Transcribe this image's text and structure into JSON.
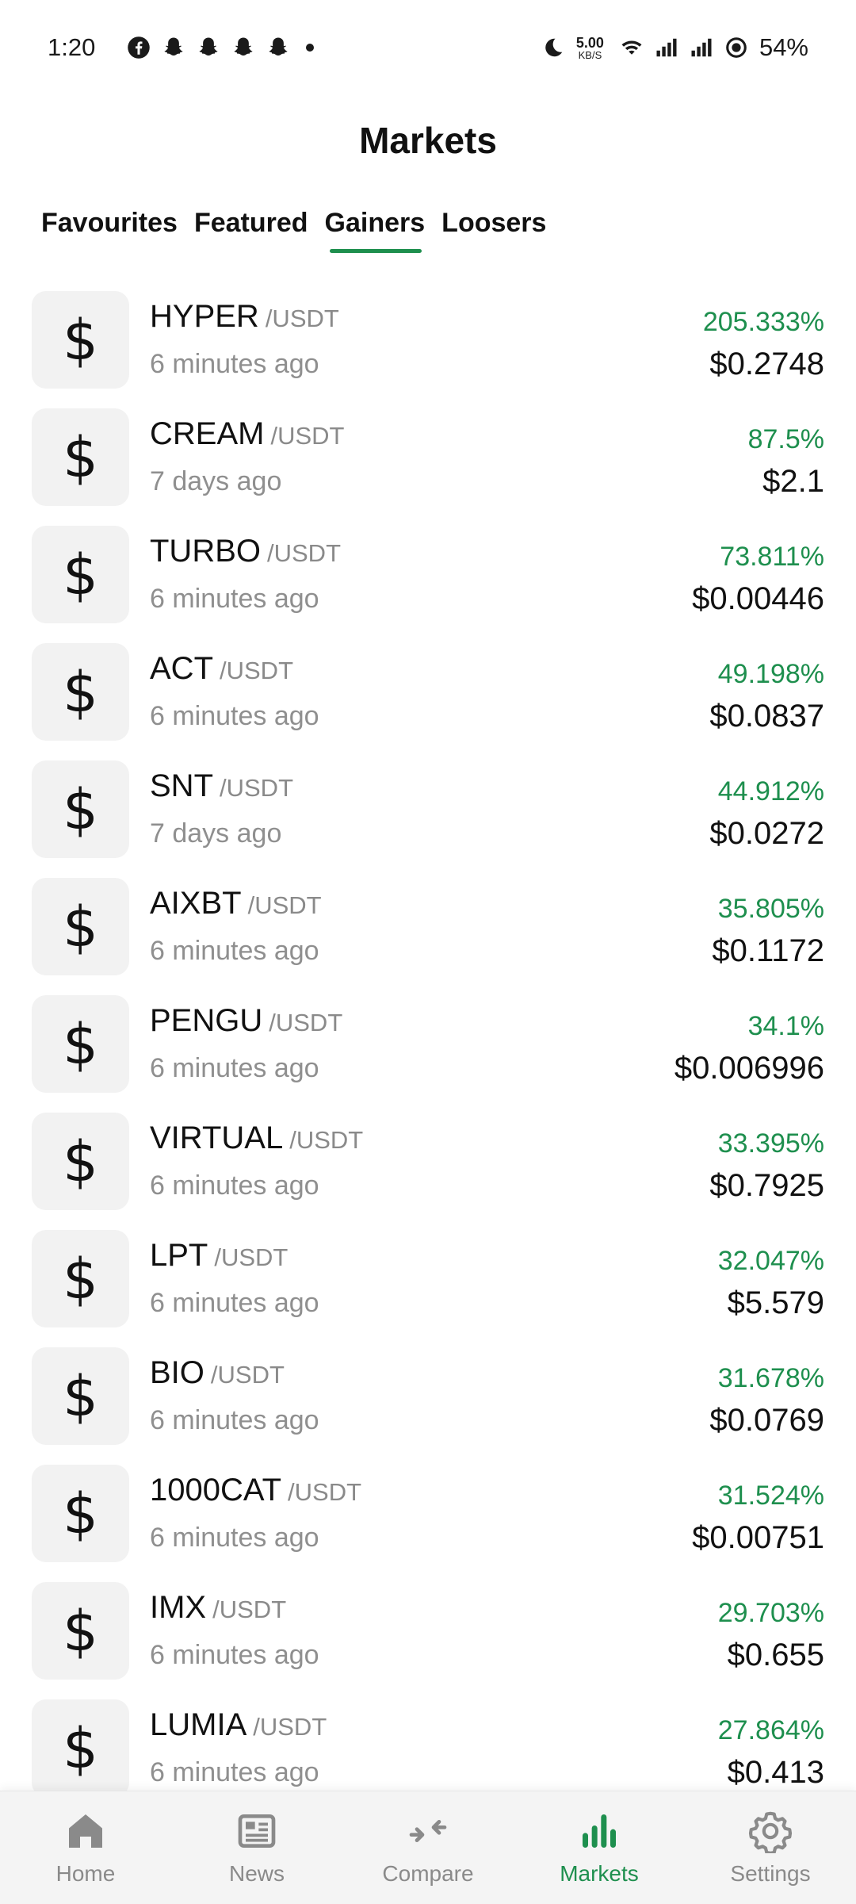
{
  "status_bar": {
    "time": "1:20",
    "net_speed_value": "5.00",
    "net_speed_unit": "KB/S",
    "battery": "54%"
  },
  "header": {
    "title": "Markets"
  },
  "tabs": [
    {
      "label": "Favourites"
    },
    {
      "label": "Featured"
    },
    {
      "label": "Gainers"
    },
    {
      "label": "Loosers"
    }
  ],
  "active_tab": "Gainers",
  "accent_color": "#1e8f4e",
  "coin_icon_glyph": "$",
  "coins": [
    {
      "symbol": "HYPER",
      "pair": "/USDT",
      "updated": "6 minutes ago",
      "change": "205.333%",
      "price": "$0.2748"
    },
    {
      "symbol": "CREAM",
      "pair": "/USDT",
      "updated": "7 days ago",
      "change": "87.5%",
      "price": "$2.1"
    },
    {
      "symbol": "TURBO",
      "pair": "/USDT",
      "updated": "6 minutes ago",
      "change": "73.811%",
      "price": "$0.00446"
    },
    {
      "symbol": "ACT",
      "pair": "/USDT",
      "updated": "6 minutes ago",
      "change": "49.198%",
      "price": "$0.0837"
    },
    {
      "symbol": "SNT",
      "pair": "/USDT",
      "updated": "7 days ago",
      "change": "44.912%",
      "price": "$0.0272"
    },
    {
      "symbol": "AIXBT",
      "pair": "/USDT",
      "updated": "6 minutes ago",
      "change": "35.805%",
      "price": "$0.1172"
    },
    {
      "symbol": "PENGU",
      "pair": "/USDT",
      "updated": "6 minutes ago",
      "change": "34.1%",
      "price": "$0.006996"
    },
    {
      "symbol": "VIRTUAL",
      "pair": "/USDT",
      "updated": "6 minutes ago",
      "change": "33.395%",
      "price": "$0.7925"
    },
    {
      "symbol": "LPT",
      "pair": "/USDT",
      "updated": "6 minutes ago",
      "change": "32.047%",
      "price": "$5.579"
    },
    {
      "symbol": "BIO",
      "pair": "/USDT",
      "updated": "6 minutes ago",
      "change": "31.678%",
      "price": "$0.0769"
    },
    {
      "symbol": "1000CAT",
      "pair": "/USDT",
      "updated": "6 minutes ago",
      "change": "31.524%",
      "price": "$0.00751"
    },
    {
      "symbol": "IMX",
      "pair": "/USDT",
      "updated": "6 minutes ago",
      "change": "29.703%",
      "price": "$0.655"
    },
    {
      "symbol": "LUMIA",
      "pair": "/USDT",
      "updated": "6 minutes ago",
      "change": "27.864%",
      "price": "$0.413"
    }
  ],
  "bottom_nav": [
    {
      "label": "Home",
      "icon": "home-icon"
    },
    {
      "label": "News",
      "icon": "news-icon"
    },
    {
      "label": "Compare",
      "icon": "compare-icon"
    },
    {
      "label": "Markets",
      "icon": "markets-icon"
    },
    {
      "label": "Settings",
      "icon": "settings-icon"
    }
  ],
  "active_nav": "Markets"
}
